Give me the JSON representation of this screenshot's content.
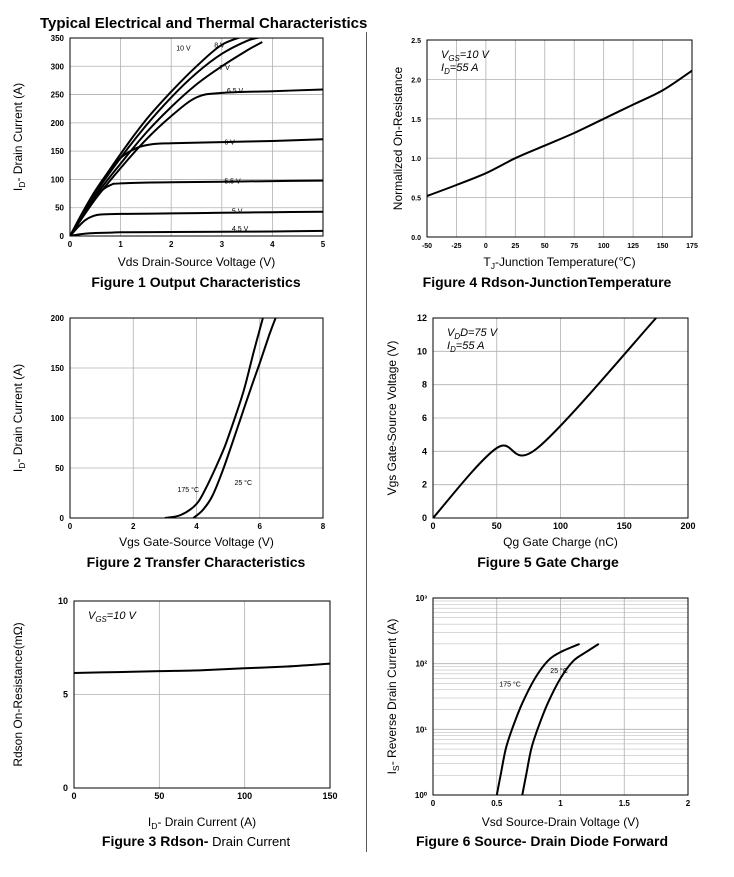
{
  "page_title": "Typical Electrical and Thermal Characteristics",
  "colors": {
    "curve": "#000000",
    "grid": "#b0b0b0",
    "frame": "#000000"
  },
  "chart_data": [
    {
      "id": "fig1",
      "type": "line",
      "caption_bold": "Figure 1 Output Characteristics",
      "caption_normal": "",
      "xlabel": "Vds Drain-Source Voltage (V)",
      "ylabel": "ID- Drain Current (A)",
      "xlim": [
        0,
        5
      ],
      "ylim": [
        0,
        350
      ],
      "xticks": [
        "0",
        "1",
        "2",
        "3",
        "4",
        "5"
      ],
      "yticks": [
        "0",
        "50",
        "100",
        "150",
        "200",
        "250",
        "300",
        "350"
      ],
      "grid": true,
      "series": [
        {
          "name": "10 V",
          "x": [
            0,
            0.5,
            1,
            1.5,
            2,
            2.5,
            3,
            3.5
          ],
          "y": [
            0,
            78,
            145,
            205,
            255,
            300,
            338,
            355
          ]
        },
        {
          "name": "8 V",
          "x": [
            0,
            0.5,
            1,
            1.5,
            2,
            2.5,
            3,
            3.5,
            3.8
          ],
          "y": [
            0,
            75,
            138,
            195,
            245,
            288,
            322,
            345,
            352
          ]
        },
        {
          "name": "7 V",
          "x": [
            0,
            0.5,
            1,
            1.5,
            2,
            2.5,
            3,
            3.5,
            3.8
          ],
          "y": [
            0,
            70,
            128,
            182,
            228,
            268,
            300,
            328,
            343
          ]
        },
        {
          "name": "6.5 V",
          "x": [
            0,
            0.5,
            1,
            1.5,
            2,
            2.5,
            3,
            4,
            5
          ],
          "y": [
            0,
            65,
            120,
            170,
            212,
            245,
            253,
            256,
            259
          ]
        },
        {
          "name": "6 V",
          "x": [
            0,
            0.25,
            0.5,
            0.75,
            1,
            1.3,
            1.6,
            2,
            3,
            4,
            5
          ],
          "y": [
            0,
            42,
            80,
            112,
            138,
            155,
            162,
            164,
            166,
            168,
            171
          ]
        },
        {
          "name": "5.5 V",
          "x": [
            0,
            0.2,
            0.4,
            0.6,
            0.8,
            1,
            2,
            3,
            4,
            5
          ],
          "y": [
            0,
            28,
            55,
            78,
            90,
            93,
            95,
            96,
            97,
            98
          ]
        },
        {
          "name": "5 V",
          "x": [
            0,
            0.15,
            0.3,
            0.45,
            0.6,
            1,
            2,
            3,
            4,
            5
          ],
          "y": [
            0,
            15,
            28,
            35,
            38,
            39,
            40,
            41,
            42,
            43
          ]
        },
        {
          "name": "4.5 V",
          "x": [
            0,
            0.2,
            0.4,
            0.8,
            1,
            2,
            3,
            4,
            5
          ],
          "y": [
            0,
            3,
            5,
            6,
            6.5,
            7,
            7.5,
            8,
            9
          ]
        }
      ],
      "labels": [
        {
          "text": "10 V",
          "x": 2.1,
          "y": 328
        },
        {
          "text": "8 V",
          "x": 2.85,
          "y": 333
        },
        {
          "text": "7 V",
          "x": 2.95,
          "y": 293
        },
        {
          "text": "6.5 V",
          "x": 3.1,
          "y": 253
        },
        {
          "text": "6 V",
          "x": 3.05,
          "y": 162
        },
        {
          "text": "5.5 V",
          "x": 3.05,
          "y": 93
        },
        {
          "text": "5 V",
          "x": 3.2,
          "y": 40
        },
        {
          "text": "4.5 V",
          "x": 3.2,
          "y": 9
        }
      ]
    },
    {
      "id": "fig4",
      "type": "line",
      "caption_bold": "Figure 4 Rdson-JunctionTemperature",
      "caption_normal": "",
      "xlabel": "TJ-Junction Temperature(℃)",
      "ylabel": "Normalized On-Resistance",
      "xlim": [
        -50,
        175
      ],
      "ylim": [
        0,
        2.5
      ],
      "xticks": [
        "-50",
        "-25",
        "0",
        "25",
        "50",
        "75",
        "100",
        "125",
        "150",
        "175"
      ],
      "yticks": [
        "0.0",
        "0.5",
        "1.0",
        "1.5",
        "2.0",
        "2.5"
      ],
      "grid": true,
      "series": [
        {
          "name": "",
          "x": [
            -50,
            -25,
            0,
            25,
            50,
            75,
            100,
            125,
            150,
            175
          ],
          "y": [
            0.52,
            0.66,
            0.81,
            1.0,
            1.16,
            1.32,
            1.5,
            1.68,
            1.86,
            2.11
          ]
        }
      ],
      "conditions": [
        "VGS=10 V",
        "ID=55 A"
      ]
    },
    {
      "id": "fig2",
      "type": "line",
      "caption_bold": "Figure 2 Transfer Characteristics",
      "caption_normal": "",
      "xlabel": "Vgs Gate-Source Voltage (V)",
      "ylabel": "ID- Drain Current (A)",
      "xlim": [
        0,
        8
      ],
      "ylim": [
        0,
        200
      ],
      "xticks": [
        "0",
        "2",
        "4",
        "6",
        "8"
      ],
      "yticks": [
        "0",
        "50",
        "100",
        "150",
        "200"
      ],
      "grid": true,
      "series": [
        {
          "name": "175 °C",
          "x": [
            3,
            3.5,
            4,
            4.3,
            4.6,
            4.9,
            5.2,
            5.5,
            5.8,
            6.1
          ],
          "y": [
            0,
            3,
            14,
            30,
            50,
            72,
            99,
            128,
            165,
            200
          ]
        },
        {
          "name": "25 °C",
          "x": [
            3.9,
            4.2,
            4.5,
            4.8,
            5.1,
            5.4,
            5.7,
            6,
            6.3,
            6.5
          ],
          "y": [
            0,
            8,
            22,
            45,
            72,
            100,
            128,
            155,
            183,
            200
          ]
        }
      ],
      "labels": [
        {
          "text": "175 °C",
          "x": 3.4,
          "y": 26
        },
        {
          "text": "25 °C",
          "x": 5.2,
          "y": 33
        }
      ]
    },
    {
      "id": "fig5",
      "type": "line",
      "caption_bold": "Figure 5 Gate Charge",
      "caption_normal": "",
      "xlabel": "Qg Gate Charge (nC)",
      "ylabel": "Vgs Gate-Source Voltage (V)",
      "xlim": [
        0,
        200
      ],
      "ylim": [
        0,
        12
      ],
      "xticks": [
        "0",
        "50",
        "100",
        "150",
        "200"
      ],
      "yticks": [
        "0",
        "2",
        "4",
        "6",
        "8",
        "10",
        "12"
      ],
      "grid": true,
      "series": [
        {
          "name": "",
          "x": [
            0,
            50,
            82,
            175
          ],
          "y": [
            0,
            4.2,
            4.2,
            12
          ]
        }
      ],
      "conditions": [
        "VDD=75 V",
        "ID=55 A"
      ]
    },
    {
      "id": "fig3",
      "type": "line",
      "caption_bold": "Figure 3 Rdson-",
      "caption_normal": "Drain Current",
      "xlabel": "ID- Drain Current (A)",
      "ylabel": "Rdson On-Resistance(mΩ)",
      "xlim": [
        0,
        150
      ],
      "ylim": [
        0,
        10
      ],
      "xticks": [
        "0",
        "50",
        "100",
        "150"
      ],
      "yticks": [
        "0",
        "5",
        "10"
      ],
      "grid": true,
      "series": [
        {
          "name": "",
          "x": [
            0,
            25,
            50,
            75,
            100,
            125,
            150
          ],
          "y": [
            6.15,
            6.2,
            6.25,
            6.3,
            6.4,
            6.5,
            6.65
          ]
        }
      ],
      "conditions": [
        "VGS=10 V"
      ]
    },
    {
      "id": "fig6",
      "type": "line",
      "caption_bold": "Figure 6 Source- Drain Diode Forward",
      "caption_normal": "",
      "xlabel": "Vsd Source-Drain Voltage (V)",
      "ylabel": "IS- Reverse Drain Current (A)",
      "xlim": [
        0,
        2
      ],
      "ylim": [
        1,
        1000
      ],
      "yscale": "log",
      "xticks": [
        "0",
        "0.5",
        "1",
        "1.5",
        "2"
      ],
      "yticks": [
        "10⁰",
        "10¹",
        "10²",
        "10³"
      ],
      "grid": true,
      "series": [
        {
          "name": "175 °C",
          "x": [
            0.5,
            0.53,
            0.57,
            0.62,
            0.7,
            0.8,
            0.9,
            1.0,
            1.15
          ],
          "y": [
            1,
            2,
            5,
            10,
            25,
            60,
            110,
            150,
            200
          ]
        },
        {
          "name": "25 °C",
          "x": [
            0.7,
            0.73,
            0.77,
            0.82,
            0.9,
            1.0,
            1.1,
            1.2,
            1.3
          ],
          "y": [
            1,
            2,
            5,
            10,
            25,
            60,
            110,
            150,
            200
          ]
        }
      ],
      "labels": [
        {
          "text": "175 °C",
          "x": 0.52,
          "y": 45
        },
        {
          "text": "25 °C",
          "x": 0.92,
          "y": 72
        }
      ]
    }
  ]
}
